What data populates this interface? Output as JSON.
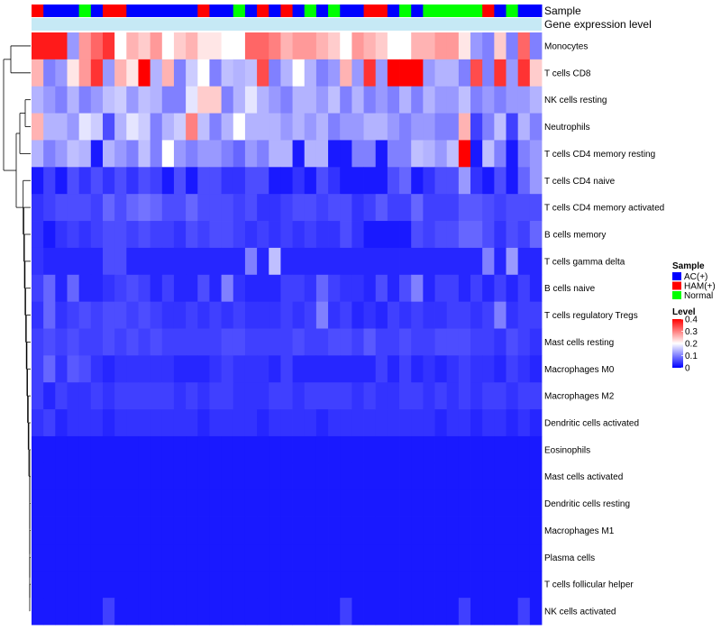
{
  "chart_data": {
    "type": "heatmap",
    "annotation_labels": {
      "sample": "Sample",
      "gene_expression": "Gene expression level"
    },
    "sample_groups": [
      "H",
      "A",
      "A",
      "A",
      "N",
      "A",
      "H",
      "H",
      "A",
      "A",
      "A",
      "A",
      "A",
      "A",
      "H",
      "A",
      "A",
      "N",
      "A",
      "H",
      "A",
      "H",
      "A",
      "N",
      "A",
      "N",
      "A",
      "A",
      "H",
      "H",
      "A",
      "N",
      "A",
      "N",
      "N",
      "N",
      "N",
      "N",
      "H",
      "A",
      "N",
      "A",
      "A"
    ],
    "gene_expression_bar_color": "#c6e9f5",
    "row_labels": [
      "Monocytes",
      "T cells CD8",
      "NK cells resting",
      "Neutrophils",
      "T cells CD4 memory resting",
      "T cells CD4 naive",
      "T cells CD4 memory activated",
      "B cells memory",
      "T cells gamma delta",
      "B cells naive",
      "T cells regulatory  Tregs",
      "Mast cells resting",
      "Macrophages M0",
      "Macrophages M2",
      "Dendritic cells activated",
      "Eosinophils",
      "Mast cells activated",
      "Dendritic cells resting",
      "Macrophages M1",
      "Plasma cells",
      "T cells follicular helper",
      "NK cells activated"
    ],
    "values": [
      [
        0.38,
        0.38,
        0.38,
        0.12,
        0.28,
        0.32,
        0.36,
        0.2,
        0.26,
        0.24,
        0.28,
        0.2,
        0.24,
        0.26,
        0.22,
        0.22,
        0.2,
        0.2,
        0.32,
        0.32,
        0.3,
        0.26,
        0.28,
        0.28,
        0.26,
        0.24,
        0.2,
        0.28,
        0.26,
        0.24,
        0.2,
        0.2,
        0.26,
        0.26,
        0.28,
        0.28,
        0.22,
        0.12,
        0.1,
        0.24,
        0.1,
        0.32,
        0.1
      ],
      [
        0.26,
        0.1,
        0.12,
        0.22,
        0.28,
        0.36,
        0.12,
        0.26,
        0.22,
        0.4,
        0.14,
        0.26,
        0.1,
        0.16,
        0.2,
        0.1,
        0.15,
        0.14,
        0.15,
        0.34,
        0.1,
        0.14,
        0.2,
        0.14,
        0.1,
        0.12,
        0.26,
        0.12,
        0.36,
        0.12,
        0.4,
        0.4,
        0.4,
        0.12,
        0.14,
        0.14,
        0.1,
        0.34,
        0.1,
        0.36,
        0.12,
        0.36,
        0.24
      ],
      [
        0.14,
        0.12,
        0.1,
        0.14,
        0.1,
        0.12,
        0.15,
        0.16,
        0.12,
        0.15,
        0.14,
        0.1,
        0.1,
        0.18,
        0.24,
        0.24,
        0.1,
        0.14,
        0.18,
        0.14,
        0.12,
        0.1,
        0.14,
        0.14,
        0.12,
        0.15,
        0.1,
        0.14,
        0.1,
        0.12,
        0.1,
        0.14,
        0.1,
        0.14,
        0.12,
        0.12,
        0.15,
        0.1,
        0.12,
        0.1,
        0.12,
        0.12,
        0.14
      ],
      [
        0.26,
        0.14,
        0.14,
        0.12,
        0.18,
        0.16,
        0.06,
        0.14,
        0.18,
        0.16,
        0.1,
        0.14,
        0.16,
        0.3,
        0.15,
        0.1,
        0.14,
        0.2,
        0.14,
        0.14,
        0.14,
        0.12,
        0.14,
        0.12,
        0.14,
        0.1,
        0.12,
        0.12,
        0.14,
        0.14,
        0.12,
        0.1,
        0.12,
        0.12,
        0.1,
        0.1,
        0.26,
        0.05,
        0.1,
        0.15,
        0.05,
        0.14,
        0.1
      ],
      [
        0.14,
        0.1,
        0.12,
        0.15,
        0.14,
        0.02,
        0.14,
        0.12,
        0.1,
        0.15,
        0.1,
        0.2,
        0.12,
        0.1,
        0.12,
        0.12,
        0.1,
        0.08,
        0.12,
        0.1,
        0.14,
        0.14,
        0.02,
        0.14,
        0.14,
        0.02,
        0.02,
        0.1,
        0.1,
        0.02,
        0.1,
        0.1,
        0.15,
        0.14,
        0.12,
        0.15,
        0.4,
        0.02,
        0.15,
        0.1,
        0.02,
        0.1,
        0.12
      ],
      [
        0.02,
        0.05,
        0.02,
        0.06,
        0.04,
        0.06,
        0.04,
        0.06,
        0.04,
        0.06,
        0.05,
        0.02,
        0.06,
        0.02,
        0.06,
        0.06,
        0.04,
        0.04,
        0.06,
        0.06,
        0.02,
        0.02,
        0.04,
        0.02,
        0.06,
        0.04,
        0.02,
        0.02,
        0.02,
        0.02,
        0.06,
        0.08,
        0.02,
        0.04,
        0.06,
        0.06,
        0.12,
        0.04,
        0.02,
        0.06,
        0.02,
        0.08,
        0.12
      ],
      [
        0.04,
        0.05,
        0.06,
        0.06,
        0.06,
        0.05,
        0.08,
        0.06,
        0.08,
        0.09,
        0.08,
        0.06,
        0.06,
        0.08,
        0.06,
        0.06,
        0.06,
        0.05,
        0.06,
        0.04,
        0.04,
        0.05,
        0.06,
        0.06,
        0.05,
        0.06,
        0.06,
        0.04,
        0.05,
        0.07,
        0.05,
        0.05,
        0.08,
        0.05,
        0.05,
        0.05,
        0.07,
        0.07,
        0.06,
        0.05,
        0.06,
        0.06,
        0.06
      ],
      [
        0.04,
        0.02,
        0.04,
        0.05,
        0.04,
        0.05,
        0.06,
        0.06,
        0.05,
        0.06,
        0.05,
        0.05,
        0.04,
        0.06,
        0.05,
        0.06,
        0.06,
        0.05,
        0.04,
        0.05,
        0.04,
        0.05,
        0.04,
        0.05,
        0.04,
        0.04,
        0.06,
        0.04,
        0.02,
        0.02,
        0.02,
        0.02,
        0.06,
        0.05,
        0.06,
        0.06,
        0.08,
        0.08,
        0.06,
        0.04,
        0.06,
        0.05,
        0.08
      ],
      [
        0.04,
        0.03,
        0.03,
        0.03,
        0.03,
        0.03,
        0.06,
        0.06,
        0.03,
        0.03,
        0.03,
        0.03,
        0.03,
        0.03,
        0.03,
        0.03,
        0.03,
        0.03,
        0.1,
        0.03,
        0.15,
        0.03,
        0.03,
        0.03,
        0.03,
        0.03,
        0.03,
        0.03,
        0.03,
        0.03,
        0.03,
        0.03,
        0.03,
        0.03,
        0.03,
        0.03,
        0.03,
        0.03,
        0.1,
        0.03,
        0.12,
        0.03,
        0.03
      ],
      [
        0.05,
        0.08,
        0.03,
        0.08,
        0.03,
        0.03,
        0.04,
        0.05,
        0.06,
        0.05,
        0.03,
        0.05,
        0.03,
        0.03,
        0.06,
        0.03,
        0.1,
        0.04,
        0.03,
        0.03,
        0.03,
        0.05,
        0.05,
        0.04,
        0.08,
        0.05,
        0.04,
        0.04,
        0.03,
        0.06,
        0.03,
        0.06,
        0.1,
        0.03,
        0.05,
        0.05,
        0.03,
        0.05,
        0.03,
        0.05,
        0.03,
        0.05,
        0.03
      ],
      [
        0.04,
        0.08,
        0.04,
        0.05,
        0.06,
        0.05,
        0.06,
        0.06,
        0.05,
        0.06,
        0.05,
        0.04,
        0.04,
        0.05,
        0.04,
        0.05,
        0.04,
        0.05,
        0.04,
        0.04,
        0.04,
        0.05,
        0.04,
        0.05,
        0.1,
        0.04,
        0.05,
        0.03,
        0.04,
        0.03,
        0.05,
        0.04,
        0.05,
        0.04,
        0.04,
        0.05,
        0.05,
        0.04,
        0.05,
        0.1,
        0.04,
        0.05,
        0.05
      ],
      [
        0.05,
        0.06,
        0.05,
        0.06,
        0.05,
        0.05,
        0.06,
        0.05,
        0.06,
        0.05,
        0.06,
        0.05,
        0.05,
        0.05,
        0.05,
        0.05,
        0.06,
        0.06,
        0.05,
        0.05,
        0.05,
        0.05,
        0.06,
        0.05,
        0.05,
        0.06,
        0.06,
        0.05,
        0.07,
        0.05,
        0.05,
        0.06,
        0.05,
        0.05,
        0.06,
        0.06,
        0.06,
        0.05,
        0.05,
        0.04,
        0.06,
        0.05,
        0.04
      ],
      [
        0.05,
        0.08,
        0.04,
        0.07,
        0.06,
        0.04,
        0.03,
        0.04,
        0.04,
        0.04,
        0.04,
        0.04,
        0.03,
        0.03,
        0.03,
        0.04,
        0.05,
        0.04,
        0.04,
        0.04,
        0.03,
        0.05,
        0.03,
        0.03,
        0.03,
        0.03,
        0.03,
        0.03,
        0.03,
        0.05,
        0.03,
        0.05,
        0.03,
        0.04,
        0.03,
        0.04,
        0.05,
        0.04,
        0.04,
        0.03,
        0.05,
        0.04,
        0.03
      ],
      [
        0.05,
        0.03,
        0.05,
        0.04,
        0.04,
        0.05,
        0.04,
        0.05,
        0.05,
        0.05,
        0.05,
        0.05,
        0.04,
        0.05,
        0.04,
        0.05,
        0.05,
        0.04,
        0.04,
        0.04,
        0.05,
        0.05,
        0.04,
        0.05,
        0.05,
        0.05,
        0.05,
        0.04,
        0.05,
        0.04,
        0.04,
        0.05,
        0.05,
        0.04,
        0.05,
        0.04,
        0.05,
        0.04,
        0.05,
        0.05,
        0.04,
        0.05,
        0.05
      ],
      [
        0.04,
        0.05,
        0.03,
        0.04,
        0.04,
        0.04,
        0.03,
        0.04,
        0.04,
        0.04,
        0.04,
        0.04,
        0.04,
        0.04,
        0.03,
        0.04,
        0.04,
        0.04,
        0.04,
        0.03,
        0.04,
        0.04,
        0.04,
        0.04,
        0.03,
        0.04,
        0.04,
        0.04,
        0.04,
        0.04,
        0.04,
        0.04,
        0.04,
        0.04,
        0.03,
        0.04,
        0.04,
        0.03,
        0.04,
        0.04,
        0.03,
        0.04,
        0.03
      ],
      [
        0.02,
        0.02,
        0.02,
        0.02,
        0.02,
        0.02,
        0.02,
        0.02,
        0.02,
        0.02,
        0.02,
        0.02,
        0.02,
        0.02,
        0.02,
        0.02,
        0.02,
        0.02,
        0.02,
        0.02,
        0.02,
        0.02,
        0.02,
        0.02,
        0.02,
        0.02,
        0.02,
        0.02,
        0.02,
        0.02,
        0.02,
        0.02,
        0.02,
        0.02,
        0.02,
        0.02,
        0.02,
        0.02,
        0.02,
        0.02,
        0.02,
        0.02,
        0.02
      ],
      [
        0.02,
        0.02,
        0.02,
        0.02,
        0.02,
        0.02,
        0.02,
        0.02,
        0.02,
        0.02,
        0.02,
        0.02,
        0.02,
        0.02,
        0.02,
        0.02,
        0.02,
        0.02,
        0.02,
        0.02,
        0.02,
        0.02,
        0.02,
        0.02,
        0.02,
        0.02,
        0.02,
        0.02,
        0.02,
        0.02,
        0.02,
        0.02,
        0.02,
        0.02,
        0.02,
        0.02,
        0.02,
        0.02,
        0.02,
        0.02,
        0.02,
        0.02,
        0.02
      ],
      [
        0.02,
        0.02,
        0.02,
        0.02,
        0.02,
        0.02,
        0.02,
        0.02,
        0.02,
        0.02,
        0.02,
        0.02,
        0.02,
        0.02,
        0.02,
        0.02,
        0.02,
        0.02,
        0.02,
        0.02,
        0.02,
        0.02,
        0.02,
        0.02,
        0.02,
        0.02,
        0.02,
        0.02,
        0.02,
        0.02,
        0.02,
        0.02,
        0.02,
        0.02,
        0.02,
        0.02,
        0.02,
        0.02,
        0.02,
        0.02,
        0.02,
        0.02,
        0.02
      ],
      [
        0.02,
        0.02,
        0.02,
        0.02,
        0.02,
        0.02,
        0.02,
        0.02,
        0.02,
        0.02,
        0.02,
        0.02,
        0.02,
        0.02,
        0.02,
        0.02,
        0.02,
        0.02,
        0.02,
        0.02,
        0.02,
        0.02,
        0.02,
        0.02,
        0.02,
        0.02,
        0.02,
        0.02,
        0.02,
        0.02,
        0.02,
        0.02,
        0.02,
        0.02,
        0.02,
        0.02,
        0.02,
        0.02,
        0.02,
        0.02,
        0.02,
        0.02,
        0.02
      ],
      [
        0.02,
        0.02,
        0.02,
        0.02,
        0.02,
        0.02,
        0.02,
        0.02,
        0.02,
        0.02,
        0.02,
        0.02,
        0.02,
        0.02,
        0.02,
        0.02,
        0.02,
        0.02,
        0.02,
        0.02,
        0.02,
        0.02,
        0.02,
        0.02,
        0.02,
        0.02,
        0.02,
        0.02,
        0.02,
        0.02,
        0.02,
        0.02,
        0.02,
        0.02,
        0.02,
        0.02,
        0.02,
        0.02,
        0.02,
        0.02,
        0.02,
        0.02,
        0.02
      ],
      [
        0.02,
        0.02,
        0.02,
        0.02,
        0.02,
        0.02,
        0.02,
        0.02,
        0.02,
        0.02,
        0.02,
        0.02,
        0.02,
        0.02,
        0.02,
        0.02,
        0.02,
        0.02,
        0.02,
        0.02,
        0.02,
        0.02,
        0.02,
        0.02,
        0.02,
        0.02,
        0.02,
        0.02,
        0.02,
        0.02,
        0.02,
        0.02,
        0.02,
        0.02,
        0.02,
        0.02,
        0.02,
        0.02,
        0.02,
        0.02,
        0.02,
        0.02,
        0.02
      ],
      [
        0.02,
        0.02,
        0.02,
        0.02,
        0.02,
        0.02,
        0.05,
        0.02,
        0.02,
        0.02,
        0.02,
        0.02,
        0.02,
        0.02,
        0.02,
        0.02,
        0.02,
        0.02,
        0.02,
        0.02,
        0.02,
        0.02,
        0.02,
        0.02,
        0.02,
        0.02,
        0.05,
        0.02,
        0.02,
        0.02,
        0.02,
        0.02,
        0.02,
        0.02,
        0.02,
        0.02,
        0.05,
        0.02,
        0.02,
        0.02,
        0.02,
        0.05,
        0.02
      ]
    ],
    "color_scale": {
      "low": "#0000ff",
      "mid": "#ffffff",
      "high": "#ff0000",
      "min": 0,
      "mid_value": 0.2,
      "max": 0.4
    },
    "legend": {
      "sample_title": "Sample",
      "sample_items": [
        {
          "key": "A",
          "label": "AC(+)",
          "color": "#0000ff"
        },
        {
          "key": "H",
          "label": "HAM(+)",
          "color": "#ff0000"
        },
        {
          "key": "N",
          "label": "Normal",
          "color": "#00ff00"
        }
      ],
      "level_title": "Level",
      "level_ticks": [
        "0.4",
        "0.3",
        "0.2",
        "0.1",
        "0"
      ],
      "level_tick_values": [
        0.4,
        0.3,
        0.2,
        0.1,
        0
      ]
    }
  }
}
